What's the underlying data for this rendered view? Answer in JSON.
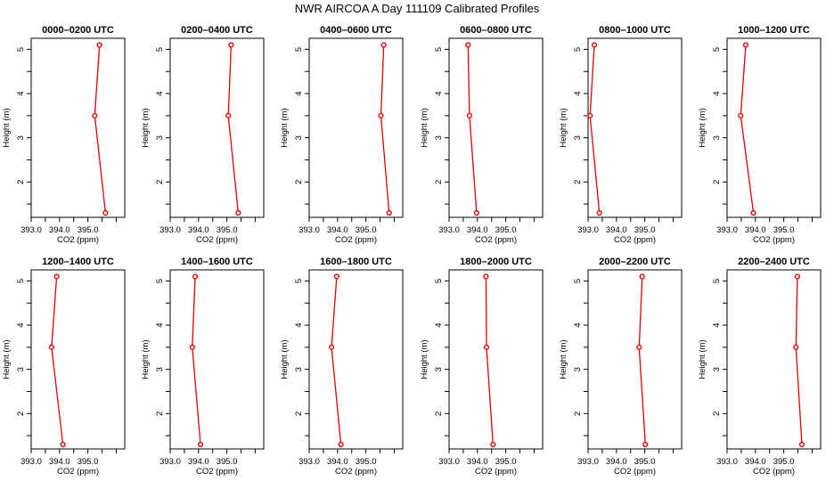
{
  "figure": {
    "title": "NWR AIRCOA A  Day 111109  Calibrated Profiles"
  },
  "style": {
    "series_color": "#dd0000",
    "axis_color": "#000000",
    "background": "#ffffff"
  },
  "chart_data": [
    {
      "type": "line",
      "title": "0000–0200 UTC",
      "xlabel": "CO2 (ppm)",
      "ylabel": "Height (m)",
      "xlim": [
        393.0,
        396.3
      ],
      "ylim": [
        1.2,
        5.25
      ],
      "xticks": [
        "393.0",
        "394.0",
        "395.0"
      ],
      "yticks": [
        "2",
        "3",
        "4",
        "5"
      ],
      "x": [
        395.62,
        395.24,
        395.41
      ],
      "y": [
        1.3,
        3.5,
        5.1
      ],
      "grid": false
    },
    {
      "type": "line",
      "title": "0200–0400 UTC",
      "xlabel": "CO2 (ppm)",
      "ylabel": "Height (m)",
      "xlim": [
        393.0,
        396.3
      ],
      "ylim": [
        1.2,
        5.25
      ],
      "xticks": [
        "393.0",
        "394.0",
        "395.0"
      ],
      "yticks": [
        "2",
        "3",
        "4",
        "5"
      ],
      "x": [
        395.4,
        395.05,
        395.15
      ],
      "y": [
        1.3,
        3.5,
        5.1
      ],
      "grid": false
    },
    {
      "type": "line",
      "title": "0400–0600 UTC",
      "xlabel": "CO2 (ppm)",
      "ylabel": "Height (m)",
      "xlim": [
        393.0,
        396.3
      ],
      "ylim": [
        1.2,
        5.25
      ],
      "xticks": [
        "393.0",
        "394.0",
        "395.0"
      ],
      "yticks": [
        "2",
        "3",
        "4",
        "5"
      ],
      "x": [
        395.82,
        395.53,
        395.63
      ],
      "y": [
        1.3,
        3.5,
        5.1
      ],
      "grid": false
    },
    {
      "type": "line",
      "title": "0600–0800 UTC",
      "xlabel": "CO2 (ppm)",
      "ylabel": "Height (m)",
      "xlim": [
        393.0,
        396.3
      ],
      "ylim": [
        1.2,
        5.25
      ],
      "xticks": [
        "393.0",
        "394.0",
        "395.0"
      ],
      "yticks": [
        "2",
        "3",
        "4",
        "5"
      ],
      "x": [
        393.97,
        393.72,
        393.67
      ],
      "y": [
        1.3,
        3.5,
        5.1
      ],
      "grid": false
    },
    {
      "type": "line",
      "title": "0800–1000 UTC",
      "xlabel": "CO2 (ppm)",
      "ylabel": "Height (m)",
      "xlim": [
        393.0,
        396.3
      ],
      "ylim": [
        1.2,
        5.25
      ],
      "xticks": [
        "393.0",
        "394.0",
        "395.0"
      ],
      "yticks": [
        "2",
        "3",
        "4",
        "5"
      ],
      "x": [
        393.4,
        393.07,
        393.22
      ],
      "y": [
        1.3,
        3.5,
        5.1
      ],
      "grid": false
    },
    {
      "type": "line",
      "title": "1000–1200 UTC",
      "xlabel": "CO2 (ppm)",
      "ylabel": "Height (m)",
      "xlim": [
        393.0,
        396.3
      ],
      "ylim": [
        1.2,
        5.25
      ],
      "xticks": [
        "393.0",
        "394.0",
        "395.0"
      ],
      "yticks": [
        "2",
        "3",
        "4",
        "5"
      ],
      "x": [
        393.93,
        393.48,
        393.66
      ],
      "y": [
        1.3,
        3.5,
        5.1
      ],
      "grid": false
    },
    {
      "type": "line",
      "title": "1200–1400 UTC",
      "xlabel": "CO2 (ppm)",
      "ylabel": "Height (m)",
      "xlim": [
        393.0,
        396.3
      ],
      "ylim": [
        1.2,
        5.25
      ],
      "xticks": [
        "393.0",
        "394.0",
        "395.0"
      ],
      "yticks": [
        "2",
        "3",
        "4",
        "5"
      ],
      "x": [
        394.12,
        393.72,
        393.9
      ],
      "y": [
        1.3,
        3.5,
        5.1
      ],
      "grid": false
    },
    {
      "type": "line",
      "title": "1400–1600 UTC",
      "xlabel": "CO2 (ppm)",
      "ylabel": "Height (m)",
      "xlim": [
        393.0,
        396.3
      ],
      "ylim": [
        1.2,
        5.25
      ],
      "xticks": [
        "393.0",
        "394.0",
        "395.0"
      ],
      "yticks": [
        "2",
        "3",
        "4",
        "5"
      ],
      "x": [
        394.07,
        393.78,
        393.88
      ],
      "y": [
        1.3,
        3.5,
        5.1
      ],
      "grid": false
    },
    {
      "type": "line",
      "title": "1600–1800 UTC",
      "xlabel": "CO2 (ppm)",
      "ylabel": "Height (m)",
      "xlim": [
        393.0,
        396.3
      ],
      "ylim": [
        1.2,
        5.25
      ],
      "xticks": [
        "393.0",
        "394.0",
        "395.0"
      ],
      "yticks": [
        "2",
        "3",
        "4",
        "5"
      ],
      "x": [
        394.12,
        393.79,
        393.97
      ],
      "y": [
        1.3,
        3.5,
        5.1
      ],
      "grid": false
    },
    {
      "type": "line",
      "title": "1800–2000 UTC",
      "xlabel": "CO2 (ppm)",
      "ylabel": "Height (m)",
      "xlim": [
        393.0,
        396.3
      ],
      "ylim": [
        1.2,
        5.25
      ],
      "xticks": [
        "393.0",
        "394.0",
        "395.0"
      ],
      "yticks": [
        "2",
        "3",
        "4",
        "5"
      ],
      "x": [
        394.55,
        394.32,
        394.3
      ],
      "y": [
        1.3,
        3.5,
        5.1
      ],
      "grid": false
    },
    {
      "type": "line",
      "title": "2000–2200 UTC",
      "xlabel": "CO2 (ppm)",
      "ylabel": "Height (m)",
      "xlim": [
        393.0,
        396.3
      ],
      "ylim": [
        1.2,
        5.25
      ],
      "xticks": [
        "393.0",
        "394.0",
        "395.0"
      ],
      "yticks": [
        "2",
        "3",
        "4",
        "5"
      ],
      "x": [
        395.02,
        394.8,
        394.91
      ],
      "y": [
        1.3,
        3.5,
        5.1
      ],
      "grid": false
    },
    {
      "type": "line",
      "title": "2200–2400 UTC",
      "xlabel": "CO2 (ppm)",
      "ylabel": "Height (m)",
      "xlim": [
        393.0,
        396.3
      ],
      "ylim": [
        1.2,
        5.25
      ],
      "xticks": [
        "393.0",
        "394.0",
        "395.0"
      ],
      "yticks": [
        "2",
        "3",
        "4",
        "5"
      ],
      "x": [
        395.64,
        395.43,
        395.48
      ],
      "y": [
        1.3,
        3.5,
        5.1
      ],
      "grid": false
    }
  ]
}
